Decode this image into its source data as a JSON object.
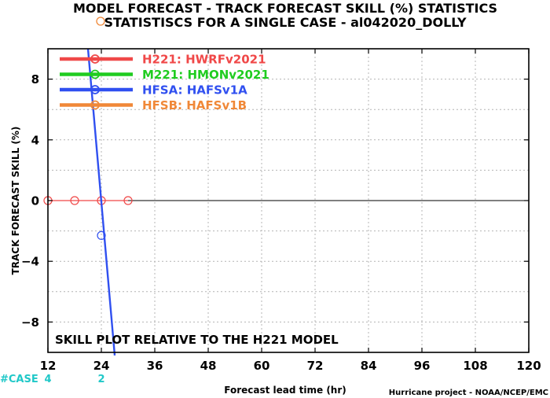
{
  "chart_data": {
    "type": "line",
    "title": "MODEL FORECAST - TRACK FORECAST SKILL (%) STATISTICS",
    "subtitle": "STATISTISCS FOR A SINGLE CASE - al042020_DOLLY",
    "xlabel": "Forecast lead time (hr)",
    "ylabel": "TRACK FORECAST SKILL (%)",
    "xlim": [
      12,
      120
    ],
    "ylim": [
      -10,
      10
    ],
    "x_ticks": [
      12,
      24,
      36,
      48,
      60,
      72,
      84,
      96,
      108,
      120
    ],
    "y_ticks": [
      8,
      4,
      0,
      -4,
      -8
    ],
    "y_tick_labels": [
      "8",
      "4",
      "0",
      "−4",
      "−8"
    ],
    "grid": true,
    "legend_position": "top-left",
    "series": [
      {
        "name": "H221: HWRFv2021",
        "color": "#f04848",
        "x": [
          12,
          18,
          24,
          30
        ],
        "y": [
          0,
          0,
          0,
          0
        ]
      },
      {
        "name": "M221: HMONv2021",
        "color": "#20cc20",
        "x": [],
        "y": []
      },
      {
        "name": "HFSA: HAFSv1A",
        "color": "#3050f0",
        "x": [
          24
        ],
        "y": [
          -2.3
        ],
        "trend": [
          [
            21,
            10
          ],
          [
            27,
            -10.2
          ]
        ]
      },
      {
        "name": "HFSB: HAFSv1B",
        "color": "#f08838",
        "x": [],
        "y": []
      }
    ],
    "annotation": "SKILL PLOT RELATIVE TO THE H221 MODEL",
    "case_counts": {
      "label": "#CASE",
      "color": "#20c8c8",
      "items": [
        {
          "x": 12,
          "count": "4"
        },
        {
          "x": 24,
          "count": "2"
        }
      ]
    },
    "credit": "Hurricane project - NOAA/NCEP/EMC"
  }
}
